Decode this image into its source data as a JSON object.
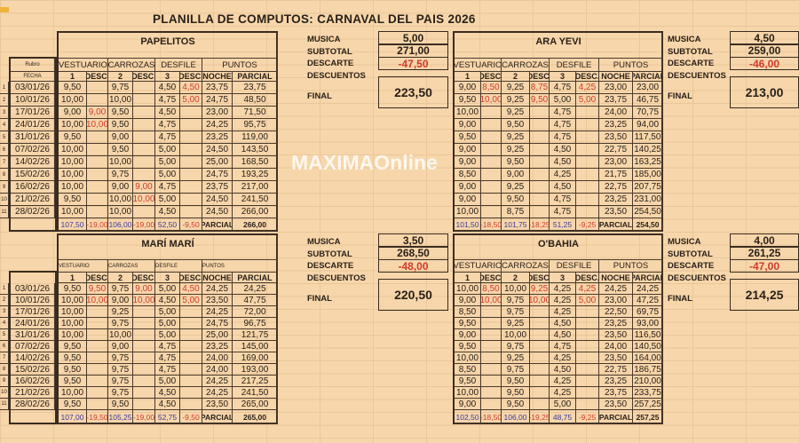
{
  "title": "PLANILLA DE COMPUTOS:  CARNAVAL DEL PAIS 2026",
  "watermark": "MAXIMAOnline",
  "colors": {
    "background": "#f7d6ab",
    "discount": "#d23a2a",
    "total": "#3a3aa0"
  },
  "fecha_header": {
    "rubro": "Rubro",
    "fecha": "FECHA"
  },
  "headers": {
    "categories": [
      "VESTUARIO",
      "CARROZAS",
      "DESFILE",
      "PUNTOS"
    ],
    "sub": [
      "1",
      "DESC.",
      "2",
      "DESC.",
      "3",
      "DESC.",
      "NOCHE",
      "PARCIAL"
    ]
  },
  "summary_labels": {
    "musica": "MUSICA",
    "subtotal": "SUBTOTAL",
    "descarte": "DESCARTE",
    "descuentos": "DESCUENTOS",
    "final": "FINAL"
  },
  "teams": [
    {
      "name": "PAPELITOS",
      "dates": [
        "03/01/26",
        "10/01/26",
        "17/01/26",
        "24/01/26",
        "31/01/26",
        "07/02/26",
        "14/02/26",
        "15/02/26",
        "16/02/26",
        "21/02/26",
        "28/02/26"
      ],
      "rows": [
        [
          "9,50",
          "",
          "9,75",
          "",
          "4,50",
          "4,50",
          "23,75",
          "23,75"
        ],
        [
          "10,00",
          "",
          "10,00",
          "",
          "4,75",
          "5,00",
          "24,75",
          "48,50"
        ],
        [
          "9,00",
          "9,00",
          "9,50",
          "",
          "4,50",
          "",
          "23,00",
          "71,50"
        ],
        [
          "10,00",
          "10,00",
          "9,50",
          "",
          "4,75",
          "",
          "24,25",
          "95,75"
        ],
        [
          "9,50",
          "",
          "9,00",
          "",
          "4,75",
          "",
          "23,25",
          "119,00"
        ],
        [
          "10,00",
          "",
          "9,50",
          "",
          "5,00",
          "",
          "24,50",
          "143,50"
        ],
        [
          "10,00",
          "",
          "10,00",
          "",
          "5,00",
          "",
          "25,00",
          "168,50"
        ],
        [
          "10,00",
          "",
          "9,75",
          "",
          "5,00",
          "",
          "24,75",
          "193,25"
        ],
        [
          "10,00",
          "",
          "9,00",
          "9,00",
          "4,75",
          "",
          "23,75",
          "217,00"
        ],
        [
          "9,50",
          "",
          "10,00",
          "10,00",
          "5,00",
          "",
          "24,50",
          "241,50"
        ],
        [
          "10,00",
          "",
          "10,00",
          "",
          "4,50",
          "",
          "24,50",
          "266,00"
        ]
      ],
      "totals": [
        "107,50",
        "-19,00",
        "106,00",
        "-19,00",
        "52,50",
        "-9,50",
        "PARCIAL",
        "266,00"
      ],
      "summary": {
        "musica": "5,00",
        "subtotal": "271,00",
        "descarte": "-47,50",
        "final": "223,50"
      }
    },
    {
      "name": "ARA YEVI",
      "rows": [
        [
          "9,00",
          "8,50",
          "9,25",
          "8,75",
          "4,75",
          "4,25",
          "23,00",
          "23,00"
        ],
        [
          "9,50",
          "10,00",
          "9,25",
          "9,50",
          "5,00",
          "5,00",
          "23,75",
          "46,75"
        ],
        [
          "10,00",
          "",
          "9,25",
          "",
          "4,75",
          "",
          "24,00",
          "70,75"
        ],
        [
          "9,00",
          "",
          "9,50",
          "",
          "4,75",
          "",
          "23,25",
          "94,00"
        ],
        [
          "9,50",
          "",
          "9,25",
          "",
          "4,75",
          "",
          "23,50",
          "117,50"
        ],
        [
          "9,00",
          "",
          "9,25",
          "",
          "4,50",
          "",
          "22,75",
          "140,25"
        ],
        [
          "9,00",
          "",
          "9,50",
          "",
          "4,50",
          "",
          "23,00",
          "163,25"
        ],
        [
          "8,50",
          "",
          "9,00",
          "",
          "4,25",
          "",
          "21,75",
          "185,00"
        ],
        [
          "9,00",
          "",
          "9,25",
          "",
          "4,50",
          "",
          "22,75",
          "207,75"
        ],
        [
          "9,00",
          "",
          "9,50",
          "",
          "4,75",
          "",
          "23,25",
          "231,00"
        ],
        [
          "10,00",
          "",
          "8,75",
          "",
          "4,75",
          "",
          "23,50",
          "254,50"
        ]
      ],
      "totals": [
        "101,50",
        "-18,50",
        "101,75",
        "-18,25",
        "51,25",
        "-9,25",
        "PARCIAL",
        "254,50"
      ],
      "summary": {
        "musica": "4,50",
        "subtotal": "259,00",
        "descarte": "-46,00",
        "final": "213,00"
      }
    },
    {
      "name": "MARÍ MARÍ",
      "dates": [
        "03/01/26",
        "10/01/26",
        "17/01/26",
        "24/01/26",
        "31/01/26",
        "07/02/26",
        "14/02/26",
        "15/02/26",
        "16/02/26",
        "21/02/26",
        "28/02/26"
      ],
      "rows": [
        [
          "9,50",
          "9,50",
          "9,75",
          "9,00",
          "5,00",
          "4,50",
          "24,25",
          "24,25"
        ],
        [
          "10,00",
          "10,00",
          "9,00",
          "10,00",
          "4,50",
          "5,00",
          "23,50",
          "47,75"
        ],
        [
          "10,00",
          "",
          "9,25",
          "",
          "5,00",
          "",
          "24,25",
          "72,00"
        ],
        [
          "10,00",
          "",
          "9,75",
          "",
          "5,00",
          "",
          "24,75",
          "96,75"
        ],
        [
          "10,00",
          "",
          "10,00",
          "",
          "5,00",
          "",
          "25,00",
          "121,75"
        ],
        [
          "9,50",
          "",
          "9,00",
          "",
          "4,75",
          "",
          "23,25",
          "145,00"
        ],
        [
          "9,50",
          "",
          "9,75",
          "",
          "4,75",
          "",
          "24,00",
          "169,00"
        ],
        [
          "9,50",
          "",
          "9,75",
          "",
          "4,75",
          "",
          "24,00",
          "193,00"
        ],
        [
          "9,50",
          "",
          "9,75",
          "",
          "5,00",
          "",
          "24,25",
          "217,25"
        ],
        [
          "10,00",
          "",
          "9,75",
          "",
          "4,50",
          "",
          "24,25",
          "241,50"
        ],
        [
          "9,50",
          "",
          "9,50",
          "",
          "4,50",
          "",
          "23,50",
          "265,00"
        ]
      ],
      "totals": [
        "107,00",
        "-19,50",
        "105,25",
        "-19,00",
        "52,75",
        "-9,50",
        "PARCIAL",
        "265,00"
      ],
      "summary": {
        "musica": "3,50",
        "subtotal": "268,50",
        "descarte": "-48,00",
        "final": "220,50"
      }
    },
    {
      "name": "O'BAHIA",
      "rows": [
        [
          "10,00",
          "8,50",
          "10,00",
          "9,25",
          "4,25",
          "4,25",
          "24,25",
          "24,25"
        ],
        [
          "9,00",
          "10,00",
          "9,75",
          "10,00",
          "4,25",
          "5,00",
          "23,00",
          "47,25"
        ],
        [
          "8,50",
          "",
          "9,75",
          "",
          "4,25",
          "",
          "22,50",
          "69,75"
        ],
        [
          "9,50",
          "",
          "9,25",
          "",
          "4,50",
          "",
          "23,25",
          "93,00"
        ],
        [
          "9,00",
          "",
          "10,00",
          "",
          "4,50",
          "",
          "23,50",
          "116,50"
        ],
        [
          "9,50",
          "",
          "9,75",
          "",
          "4,75",
          "",
          "24,00",
          "140,50"
        ],
        [
          "10,00",
          "",
          "9,25",
          "",
          "4,25",
          "",
          "23,50",
          "164,00"
        ],
        [
          "8,50",
          "",
          "9,75",
          "",
          "4,50",
          "",
          "22,75",
          "186,75"
        ],
        [
          "9,50",
          "",
          "9,50",
          "",
          "4,25",
          "",
          "23,25",
          "210,00"
        ],
        [
          "10,00",
          "",
          "9,50",
          "",
          "4,25",
          "",
          "23,75",
          "233,75"
        ],
        [
          "9,00",
          "",
          "9,50",
          "",
          "5,00",
          "",
          "23,50",
          "257,25"
        ]
      ],
      "totals": [
        "102,50",
        "-18,50",
        "106,00",
        "-19,25",
        "48,75",
        "-9,25",
        "PARCIAL",
        "257,25"
      ],
      "summary": {
        "musica": "4,00",
        "subtotal": "261,25",
        "descarte": "-47,00",
        "final": "214,25"
      }
    }
  ]
}
